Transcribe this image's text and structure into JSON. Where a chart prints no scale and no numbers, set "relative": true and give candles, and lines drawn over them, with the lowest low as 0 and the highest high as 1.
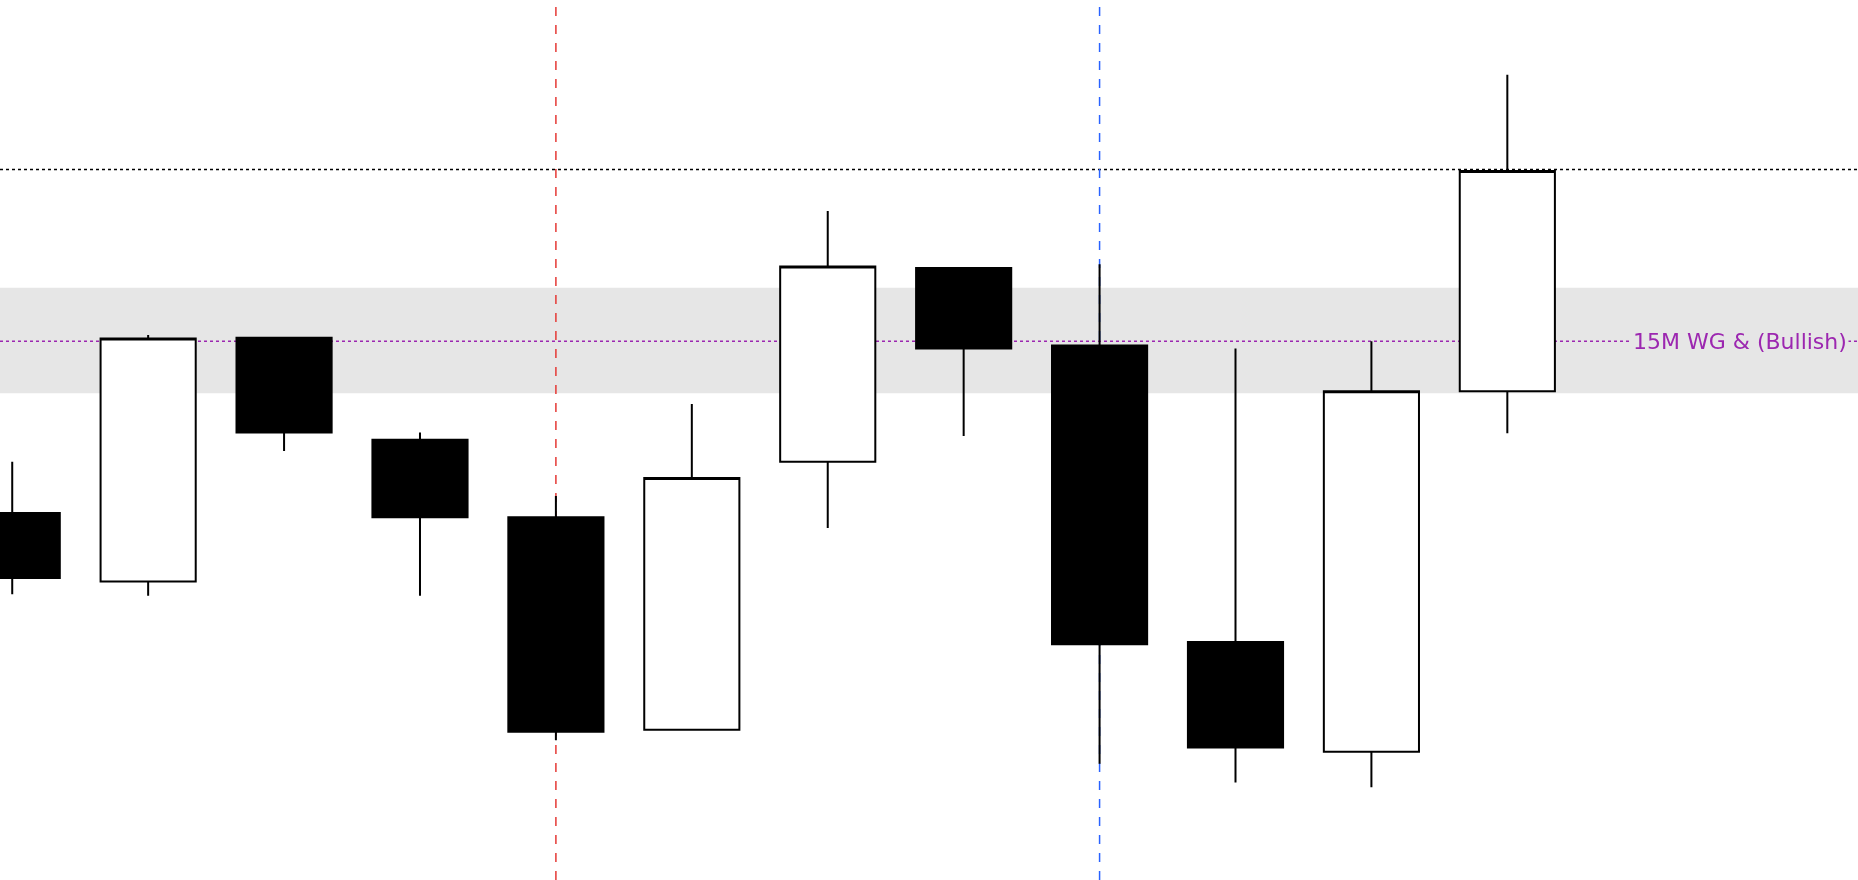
{
  "chart_data": {
    "type": "candlestick",
    "relative": true,
    "categories": [
      null,
      null,
      null,
      null,
      null,
      null,
      null,
      null,
      null,
      null,
      null,
      null
    ],
    "ohlc": [
      [
        0.385,
        0.457,
        0.271,
        0.294
      ],
      [
        0.289,
        0.635,
        0.269,
        0.63
      ],
      [
        0.631,
        0.631,
        0.472,
        0.498
      ],
      [
        0.488,
        0.498,
        0.269,
        0.379
      ],
      [
        0.379,
        0.409,
        0.066,
        0.078
      ],
      [
        0.081,
        0.538,
        0.081,
        0.434
      ],
      [
        0.457,
        0.809,
        0.364,
        0.731
      ],
      [
        0.729,
        0.729,
        0.493,
        0.616
      ],
      [
        0.62,
        0.734,
        0.033,
        0.201
      ],
      [
        0.204,
        0.616,
        0.007,
        0.056
      ],
      [
        0.05,
        0.626,
        0,
        0.556
      ],
      [
        0.556,
        1,
        0.497,
        0.865
      ]
    ],
    "bands": [
      {
        "axis": "y",
        "from": 0.553,
        "to": 0.701,
        "color": "#e6e6e6"
      }
    ],
    "ref_lines": [
      {
        "axis": "y",
        "value": 0.867,
        "color": "#000000",
        "line_style": "dotted"
      },
      {
        "axis": "y",
        "value": 0.626,
        "label": "15M WG & (Bullish)",
        "color": "#9c27b0",
        "line_style": "dotted"
      }
    ],
    "grid": false,
    "legend": false
  }
}
